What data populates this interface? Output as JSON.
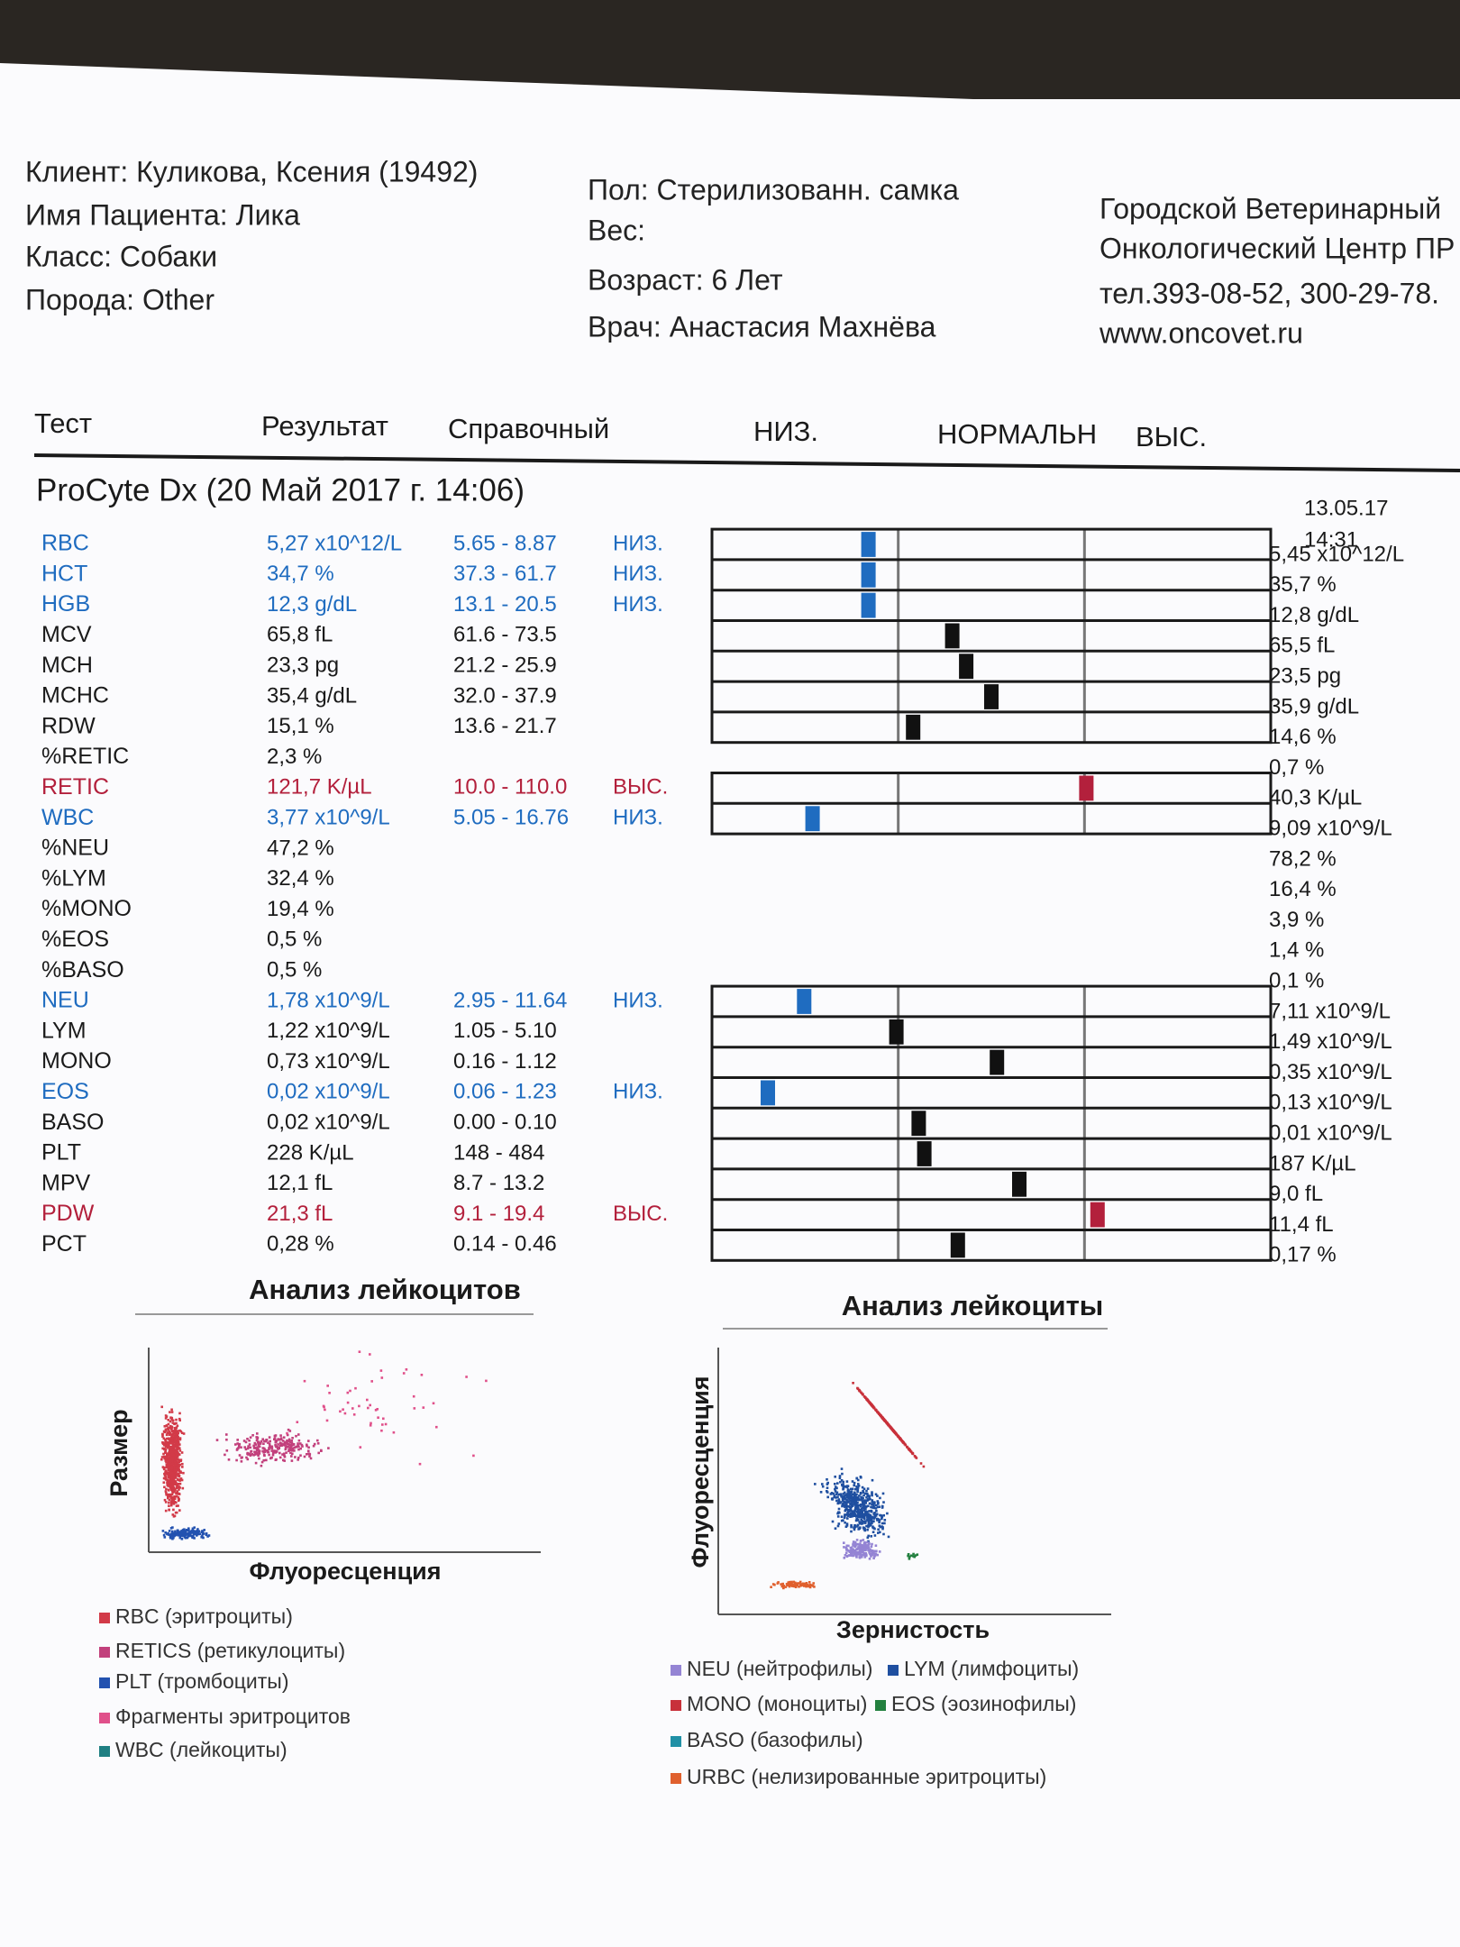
{
  "header": {
    "client": [
      "Клиент: Куликова, Ксения (19492)",
      "Имя Пациента: Лика",
      "Класс: Собаки",
      "Порода: Other"
    ],
    "patient": [
      "Пол: Стерилизованн. самка",
      "Вес:",
      "Возраст: 6 Лет",
      "Врач: Анастасия Махнёва"
    ],
    "clinic": [
      "Городской Ветеринарный",
      "Онкологический Центр ПР",
      "тел.393-08-52, 300-29-78.",
      "www.oncovet.ru"
    ]
  },
  "table": {
    "columns": [
      "Тест",
      "Результат",
      "Справочный",
      "НИЗ.",
      "НОРМАЛЬН",
      "ВЫС."
    ],
    "section": "ProCyte Dx (20 Май 2017 г. 14:06)",
    "previous": {
      "date": "13.05.17",
      "time": "14:31"
    },
    "rows": [
      {
        "test": "RBC",
        "result": "5,27 x10^12/L",
        "range": "5.65 - 8.87",
        "flag": "НИЗ.",
        "previous": "5,45 x10^12/L",
        "color": "#1f6cc0"
      },
      {
        "test": "HCT",
        "result": "34,7 %",
        "range": "37.3 - 61.7",
        "flag": "НИЗ.",
        "previous": "35,7 %",
        "color": "#1f6cc0"
      },
      {
        "test": "HGB",
        "result": "12,3 g/dL",
        "range": "13.1 - 20.5",
        "flag": "НИЗ.",
        "previous": "12,8 g/dL",
        "color": "#1f6cc0"
      },
      {
        "test": "MCV",
        "result": "65,8 fL",
        "range": "61.6 - 73.5",
        "previous": "65,5 fL",
        "color": "#1a1a1a"
      },
      {
        "test": "MCH",
        "result": "23,3 pg",
        "range": "21.2 - 25.9",
        "previous": "23,5 pg",
        "color": "#1a1a1a"
      },
      {
        "test": "MCHC",
        "result": "35,4 g/dL",
        "range": "32.0 - 37.9",
        "previous": "35,9 g/dL",
        "color": "#1a1a1a"
      },
      {
        "test": "RDW",
        "result": "15,1 %",
        "range": "13.6 - 21.7",
        "previous": "14,6 %",
        "color": "#1a1a1a"
      },
      {
        "test": "%RETIC",
        "result": "2,3 %",
        "previous": "0,7 %",
        "color": "#1a1a1a"
      },
      {
        "test": "RETIC",
        "result": "121,7 K/µL",
        "range": "10.0 - 110.0",
        "flag": "ВЫС.",
        "previous": "40,3 K/µL",
        "color": "#b3203c"
      },
      {
        "test": "WBC",
        "result": "3,77 x10^9/L",
        "range": "5.05 - 16.76",
        "flag": "НИЗ.",
        "previous": "9,09 x10^9/L",
        "color": "#1f6cc0"
      },
      {
        "test": "%NEU",
        "result": "47,2 %",
        "previous": "78,2 %",
        "color": "#1a1a1a"
      },
      {
        "test": "%LYM",
        "result": "32,4 %",
        "previous": "16,4 %",
        "color": "#1a1a1a"
      },
      {
        "test": "%MONO",
        "result": "19,4 %",
        "previous": "3,9 %",
        "color": "#1a1a1a"
      },
      {
        "test": "%EOS",
        "result": "0,5 %",
        "previous": "1,4 %",
        "color": "#1a1a1a"
      },
      {
        "test": "%BASO",
        "result": "0,5 %",
        "previous": "0,1 %",
        "color": "#1a1a1a"
      },
      {
        "test": "NEU",
        "result": "1,78 x10^9/L",
        "range": "2.95 - 11.64",
        "flag": "НИЗ.",
        "previous": "7,11 x10^9/L",
        "color": "#1f6cc0"
      },
      {
        "test": "LYM",
        "result": "1,22 x10^9/L",
        "range": "1.05 - 5.10",
        "previous": "1,49 x10^9/L",
        "color": "#1a1a1a"
      },
      {
        "test": "MONO",
        "result": "0,73 x10^9/L",
        "range": "0.16 - 1.12",
        "previous": "0,35 x10^9/L",
        "color": "#1a1a1a"
      },
      {
        "test": "EOS",
        "result": "0,02 x10^9/L",
        "range": "0.06 - 1.23",
        "flag": "НИЗ.",
        "previous": "0,13 x10^9/L",
        "color": "#1f6cc0"
      },
      {
        "test": "BASO",
        "result": "0,02 x10^9/L",
        "range": "0.00 - 0.10",
        "previous": "0,01 x10^9/L",
        "color": "#1a1a1a"
      },
      {
        "test": "PLT",
        "result": "228 K/µL",
        "range": "148 - 484",
        "previous": "187 K/µL",
        "color": "#1a1a1a"
      },
      {
        "test": "MPV",
        "result": "12,1 fL",
        "range": "8.7 - 13.2",
        "previous": "9,0 fL",
        "color": "#1a1a1a"
      },
      {
        "test": "PDW",
        "result": "21,3 fL",
        "range": "9.1 - 19.4",
        "flag": "ВЫС.",
        "previous": "11,4 fL",
        "color": "#b3203c"
      },
      {
        "test": "PCT",
        "result": "0,28 %",
        "range": "0.14 - 0.46",
        "previous": "0,17 %",
        "color": "#1a1a1a"
      }
    ]
  },
  "charts": [
    {
      "title": "Анализ лейкоцитов",
      "y_label": "Размер",
      "x_label": "Флуоресценция",
      "legend": [
        {
          "label": "RBC (эритроциты)",
          "color": "#d23a48"
        },
        {
          "label": "RETICS (ретикулоциты)",
          "color": "#c2407c"
        },
        {
          "label": "PLT (тромбоциты)",
          "color": "#2352b0"
        },
        {
          "label": "Фрагменты эритроцитов",
          "color": "#e0508a"
        },
        {
          "label": "WBC (лейкоциты)",
          "color": "#1f7f82"
        }
      ]
    },
    {
      "title": "Анализ лейкоциты",
      "y_label": "Флуоресценция",
      "x_label": "Зернистость",
      "legend": [
        {
          "label": "NEU (нейтрофилы)",
          "color": "#9484d4"
        },
        {
          "label": "LYM (лимфоциты)",
          "color": "#1f4fa0"
        },
        {
          "label": "MONO (моноциты)",
          "color": "#c8303a"
        },
        {
          "label": "EOS (эозинофилы)",
          "color": "#23803f"
        },
        {
          "label": "BASO (базофилы)",
          "color": "#2090a6"
        },
        {
          "label": "URBC (нелизированные эритроциты)",
          "color": "#e0602e"
        }
      ]
    }
  ]
}
